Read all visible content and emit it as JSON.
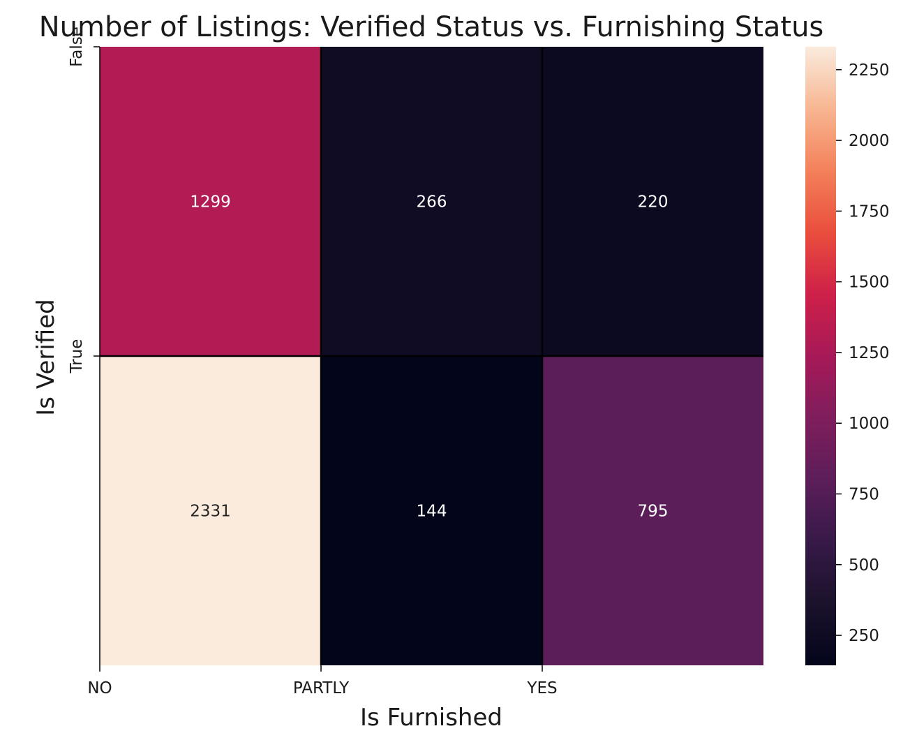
{
  "chart_data": {
    "type": "heatmap",
    "title": "Number of Listings: Verified Status vs. Furnishing Status",
    "xlabel": "Is Furnished",
    "ylabel": "Is Verified",
    "x_categories": [
      "NO",
      "PARTLY",
      "YES"
    ],
    "y_categories": [
      "False",
      "True"
    ],
    "values": [
      [
        1299,
        266,
        220
      ],
      [
        2331,
        144,
        795
      ]
    ],
    "cell_labels": [
      [
        "1299",
        "266",
        "220"
      ],
      [
        "2331",
        "144",
        "795"
      ]
    ],
    "colormap": "rocket",
    "colorbar": {
      "range": [
        144,
        2331
      ],
      "ticks": [
        250,
        500,
        750,
        1000,
        1250,
        1500,
        1750,
        2000,
        2250
      ],
      "tick_labels": [
        "250",
        "500",
        "750",
        "1000",
        "1250",
        "1500",
        "1750",
        "2000",
        "2250"
      ]
    },
    "cell_border_color": "#000000",
    "grid": false,
    "legend": "colorbar-right"
  }
}
